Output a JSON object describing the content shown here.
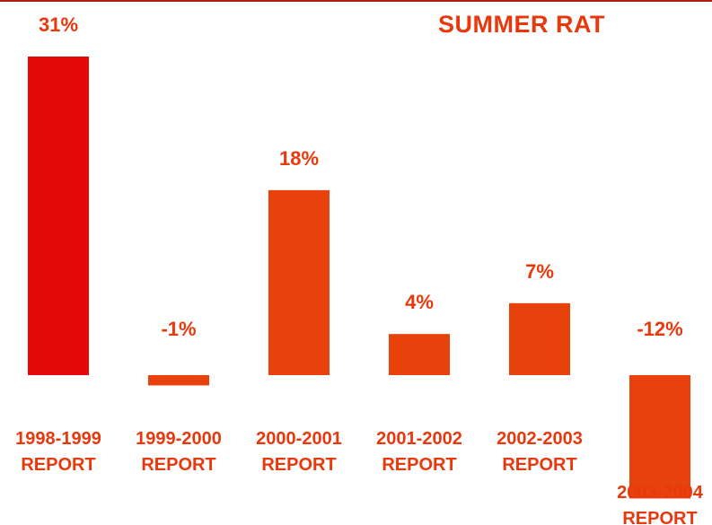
{
  "chart_data": {
    "type": "bar",
    "title": "SUMMER RAT",
    "categories": [
      [
        "1998-1999",
        "REPORT"
      ],
      [
        "1999-2000",
        "REPORT"
      ],
      [
        "2000-2001",
        "REPORT"
      ],
      [
        "2001-2002",
        "REPORT"
      ],
      [
        "2002-2003",
        "REPORT"
      ],
      [
        "2003-2004",
        "REPORT"
      ]
    ],
    "values": [
      31,
      -1,
      18,
      4,
      7,
      -12
    ],
    "data_labels": [
      "31%",
      "-1%",
      "18%",
      "4%",
      "7%",
      "-12%"
    ],
    "colors": [
      "#e40a0a",
      "#e8420c",
      "#e8420c",
      "#e8420c",
      "#e8420c",
      "#e8420c"
    ],
    "label_color": "#e8380c",
    "grid": false,
    "legend": "none"
  }
}
